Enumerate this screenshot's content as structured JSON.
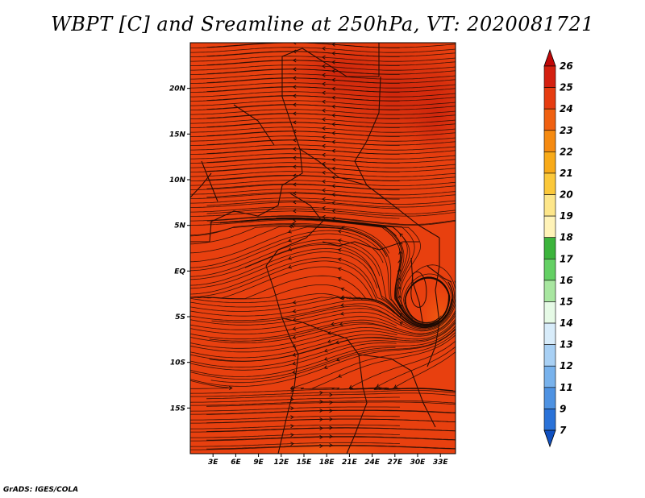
{
  "title": "WBPT [C] and Sreamline at 250hPa, VT: 2020081721",
  "footer": "GrADS: IGES/COLA",
  "map": {
    "lon_range": [
      0,
      35
    ],
    "lat_range": [
      -20,
      25
    ],
    "y_ticks": [
      "20N",
      "15N",
      "10N",
      "5N",
      "EQ",
      "5S",
      "10S",
      "15S"
    ],
    "y_tick_values": [
      20,
      15,
      10,
      5,
      0,
      -5,
      -10,
      -15
    ],
    "x_ticks": [
      "3E",
      "6E",
      "9E",
      "12E",
      "15E",
      "18E",
      "21E",
      "24E",
      "27E",
      "30E",
      "33E"
    ],
    "x_tick_values": [
      3,
      6,
      9,
      12,
      15,
      18,
      21,
      24,
      27,
      30,
      33
    ],
    "fill_base_color": "#e8400f",
    "fill_warm_color": "#d1270d",
    "streamline_color": "#1a0a05",
    "border_color": "#2a0c05"
  },
  "colorbar": {
    "labels": [
      "26",
      "25",
      "24",
      "23",
      "22",
      "21",
      "20",
      "19",
      "18",
      "17",
      "16",
      "15",
      "14",
      "13",
      "12",
      "11",
      "9",
      "7"
    ],
    "colors": [
      "#c00808",
      "#d42010",
      "#e63c10",
      "#f06010",
      "#f58a10",
      "#f8aa18",
      "#fbc83a",
      "#fde68a",
      "#fff3b8",
      "#3cb43c",
      "#64d064",
      "#a8e6a0",
      "#e6fae6",
      "#d8ecfa",
      "#a8d0f4",
      "#78b2ec",
      "#4e92e2",
      "#2a72d8",
      "#1050c0"
    ]
  }
}
